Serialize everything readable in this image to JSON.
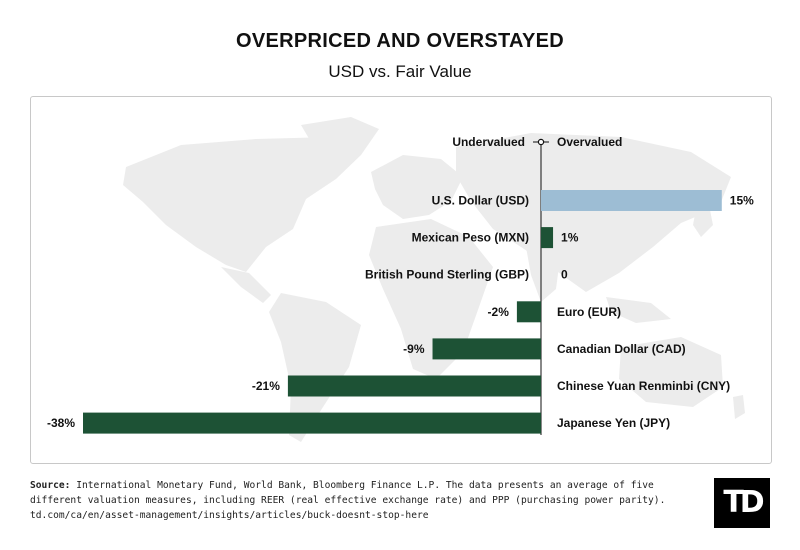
{
  "header": {
    "title": "OVERPRICED AND OVERSTAYED",
    "subtitle": "USD vs. Fair Value"
  },
  "chart_data": {
    "type": "bar",
    "orientation": "horizontal",
    "categories": [
      "U.S. Dollar (USD)",
      "Mexican Peso (MXN)",
      "British Pound Sterling (GBP)",
      "Euro (EUR)",
      "Canadian Dollar (CAD)",
      "Chinese Yuan Renminbi (CNY)",
      "Japanese Yen (JPY)"
    ],
    "values": [
      15,
      1,
      0,
      -2,
      -9,
      -21,
      -38
    ],
    "value_labels": [
      "15%",
      "1%",
      "0",
      "-2%",
      "-9%",
      "-21%",
      "-38%"
    ],
    "axis_labels": {
      "negative": "Undervalued",
      "positive": "Overvalued"
    },
    "xlim": [
      -38,
      15
    ],
    "colors": {
      "highlight": "#9dbdd4",
      "default": "#1d5235",
      "map": "#ececec"
    },
    "grid": false,
    "legend": "none"
  },
  "footer": {
    "source_label": "Source:",
    "source_text": " International Monetary Fund, World Bank, Bloomberg Finance L.P. The data presents an average of five different valuation measures, including REER (real effective exchange rate) and PPP (purchasing power parity).",
    "url": "td.com/ca/en/asset-management/insights/articles/buck-doesnt-stop-here"
  },
  "logo": {
    "text": "TD"
  }
}
